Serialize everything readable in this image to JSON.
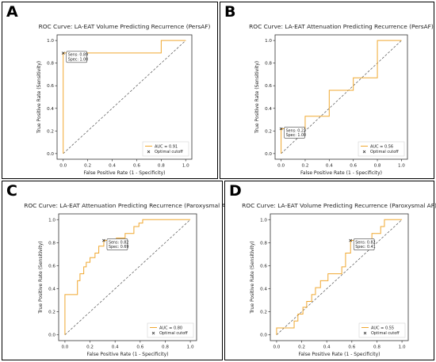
{
  "chart_data": [
    {
      "panel": "A",
      "type": "line",
      "title": "ROC Curve: LA-EAT Volume Predicting Recurrence (PersAF)",
      "xlabel": "False Positive Rate (1 - Specificity)",
      "ylabel": "True Positive Rate (Sensitivity)",
      "xlim": [
        -0.05,
        1.05
      ],
      "ylim": [
        -0.05,
        1.05
      ],
      "xticks": [
        "0.0",
        "0.2",
        "0.4",
        "0.6",
        "0.8",
        "1.0"
      ],
      "yticks": [
        "0.0",
        "0.2",
        "0.4",
        "0.6",
        "0.8",
        "1.0"
      ],
      "grid": false,
      "legend_position": "lower-right",
      "series": [
        {
          "name": "AUC = 0.91",
          "color": "#f0a830",
          "x": [
            0.0,
            0.0,
            0.0,
            0.8,
            0.8,
            1.0
          ],
          "y": [
            0.0,
            0.89,
            0.89,
            0.89,
            1.0,
            1.0
          ]
        }
      ],
      "diagonal": {
        "x": [
          0,
          1
        ],
        "y": [
          0,
          1
        ]
      },
      "optimal_cutoff": {
        "name": "Optimal cutoff",
        "x": 0.0,
        "y": 0.89,
        "color": "#e8271c"
      },
      "annotation": [
        "Sens: 0.89",
        "Spec: 1.00"
      ]
    },
    {
      "panel": "B",
      "type": "line",
      "title": "ROC Curve: LA-EAT Attenuation Predicting Recurrence (PersAF)",
      "xlabel": "False Positive Rate (1 - Specificity)",
      "ylabel": "True Positive Rate (Sensitivity)",
      "xlim": [
        -0.05,
        1.05
      ],
      "ylim": [
        -0.05,
        1.05
      ],
      "xticks": [
        "0.0",
        "0.2",
        "0.4",
        "0.6",
        "0.8",
        "1.0"
      ],
      "yticks": [
        "0.0",
        "0.2",
        "0.4",
        "0.6",
        "0.8",
        "1.0"
      ],
      "grid": false,
      "legend_position": "lower-right",
      "series": [
        {
          "name": "AUC = 0.56",
          "color": "#f0a830",
          "x": [
            0.0,
            0.0,
            0.2,
            0.2,
            0.4,
            0.4,
            0.6,
            0.6,
            0.8,
            0.8,
            1.0
          ],
          "y": [
            0.0,
            0.22,
            0.22,
            0.33,
            0.33,
            0.56,
            0.56,
            0.67,
            0.67,
            1.0,
            1.0
          ]
        }
      ],
      "diagonal": {
        "x": [
          0,
          1
        ],
        "y": [
          0,
          1
        ]
      },
      "optimal_cutoff": {
        "name": "Optimal cutoff",
        "x": 0.0,
        "y": 0.22,
        "color": "#e8271c"
      },
      "annotation": [
        "Sens: 0.22",
        "Spec: 1.00"
      ]
    },
    {
      "panel": "C",
      "type": "line",
      "title": "ROC Curve: LA-EAT Attenuation Predicting Recurrence (Paroxysmal AF)",
      "xlabel": "False Positive Rate (1 - Specificity)",
      "ylabel": "True Positive Rate (Sensitivity)",
      "xlim": [
        -0.05,
        1.05
      ],
      "ylim": [
        -0.05,
        1.05
      ],
      "xticks": [
        "0.0",
        "0.2",
        "0.4",
        "0.6",
        "0.8",
        "1.0"
      ],
      "yticks": [
        "0.0",
        "0.2",
        "0.4",
        "0.6",
        "0.8",
        "1.0"
      ],
      "grid": false,
      "legend_position": "lower-right",
      "series": [
        {
          "name": "AUC = 0.80",
          "color": "#f0a830",
          "x": [
            0.0,
            0.0,
            0.0,
            0.1,
            0.1,
            0.12,
            0.12,
            0.15,
            0.15,
            0.17,
            0.17,
            0.2,
            0.2,
            0.24,
            0.24,
            0.27,
            0.27,
            0.31,
            0.31,
            0.38,
            0.38,
            0.41,
            0.41,
            0.48,
            0.48,
            0.55,
            0.55,
            0.59,
            0.59,
            0.62,
            0.62,
            1.0
          ],
          "y": [
            0.0,
            0.12,
            0.35,
            0.35,
            0.47,
            0.47,
            0.53,
            0.53,
            0.59,
            0.59,
            0.63,
            0.63,
            0.67,
            0.67,
            0.71,
            0.71,
            0.77,
            0.77,
            0.82,
            0.82,
            0.82,
            0.82,
            0.84,
            0.84,
            0.88,
            0.88,
            0.94,
            0.94,
            0.97,
            0.97,
            1.0,
            1.0
          ]
        }
      ],
      "diagonal": {
        "x": [
          0,
          1
        ],
        "y": [
          0,
          1
        ]
      },
      "optimal_cutoff": {
        "name": "Optimal cutoff",
        "x": 0.31,
        "y": 0.82,
        "color": "#e8271c"
      },
      "annotation": [
        "Sens: 0.82",
        "Spec: 0.69"
      ]
    },
    {
      "panel": "D",
      "type": "line",
      "title": "ROC Curve: LA-EAT Volume Predicting Recurrence (Paroxysmal AF)",
      "xlabel": "False Positive Rate (1 - Specificity)",
      "ylabel": "True Positive Rate (Sensitivity)",
      "xlim": [
        -0.05,
        1.05
      ],
      "ylim": [
        -0.05,
        1.05
      ],
      "xticks": [
        "0.0",
        "0.2",
        "0.4",
        "0.6",
        "0.8",
        "1.0"
      ],
      "yticks": [
        "0.0",
        "0.2",
        "0.4",
        "0.6",
        "0.8",
        "1.0"
      ],
      "grid": false,
      "legend_position": "lower-right",
      "series": [
        {
          "name": "AUC = 0.55",
          "color": "#f0a830",
          "x": [
            0.0,
            0.0,
            0.03,
            0.03,
            0.14,
            0.14,
            0.17,
            0.17,
            0.21,
            0.21,
            0.24,
            0.24,
            0.28,
            0.28,
            0.31,
            0.31,
            0.35,
            0.35,
            0.38,
            0.38,
            0.41,
            0.41,
            0.45,
            0.45,
            0.52,
            0.52,
            0.55,
            0.55,
            0.59,
            0.59,
            0.62,
            0.62,
            0.69,
            0.69,
            0.76,
            0.76,
            0.79,
            0.79,
            0.83,
            0.83,
            0.86,
            0.86,
            0.9,
            0.9,
            1.0
          ],
          "y": [
            0.0,
            0.06,
            0.06,
            0.06,
            0.06,
            0.12,
            0.12,
            0.18,
            0.18,
            0.24,
            0.24,
            0.29,
            0.29,
            0.35,
            0.35,
            0.41,
            0.41,
            0.47,
            0.47,
            0.47,
            0.47,
            0.53,
            0.53,
            0.53,
            0.53,
            0.59,
            0.59,
            0.71,
            0.71,
            0.82,
            0.82,
            0.82,
            0.82,
            0.82,
            0.82,
            0.88,
            0.88,
            0.88,
            0.88,
            0.94,
            0.94,
            1.0,
            1.0,
            1.0,
            1.0
          ]
        }
      ],
      "diagonal": {
        "x": [
          0,
          1
        ],
        "y": [
          0,
          1
        ]
      },
      "optimal_cutoff": {
        "name": "Optimal cutoff",
        "x": 0.59,
        "y": 0.82,
        "color": "#e8271c"
      },
      "annotation": [
        "Sens: 0.82",
        "Spec: 0.41"
      ]
    }
  ]
}
